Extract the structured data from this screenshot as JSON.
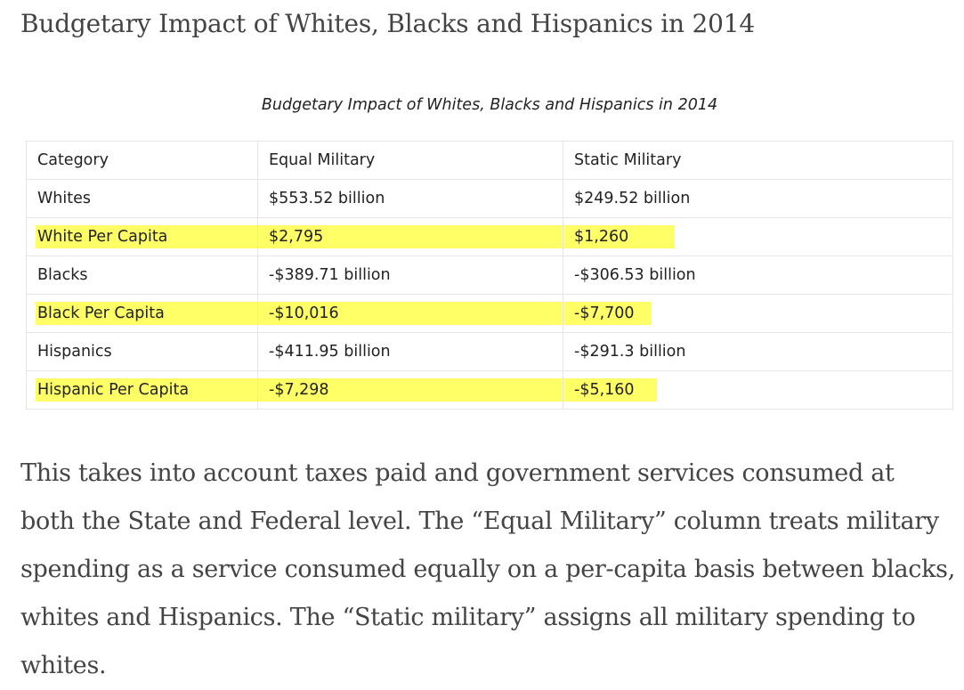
{
  "article": {
    "heading": "Budgetary Impact of Whites, Blacks and Hispanics in 2014",
    "body": "This takes into account taxes paid and government services consumed at both the State and Federal level. The “Equal Military” column treats military spending as a service consumed equally on a per-capita basis between blacks, whites and Hispanics. The “Static military” assigns all military spending to whites."
  },
  "figure": {
    "caption": "Budgetary Impact of Whites, Blacks and Hispanics in 2014",
    "highlight_color": "#ffff66",
    "table": {
      "headers": [
        "Category",
        "Equal Military",
        "Static Military"
      ],
      "rows": [
        [
          "Whites",
          "$553.52 billion",
          "$249.52 billion"
        ],
        [
          "White Per Capita",
          "$2,795",
          "$1,260"
        ],
        [
          "Blacks",
          "-$389.71 billion",
          "-$306.53 billion"
        ],
        [
          "Black Per Capita",
          "-$10,016",
          "-$7,700"
        ],
        [
          "Hispanics",
          "-$411.95 billion",
          "-$291.3 billion"
        ],
        [
          "Hispanic Per Capita",
          "-$7,298",
          "-$5,160"
        ]
      ]
    }
  }
}
